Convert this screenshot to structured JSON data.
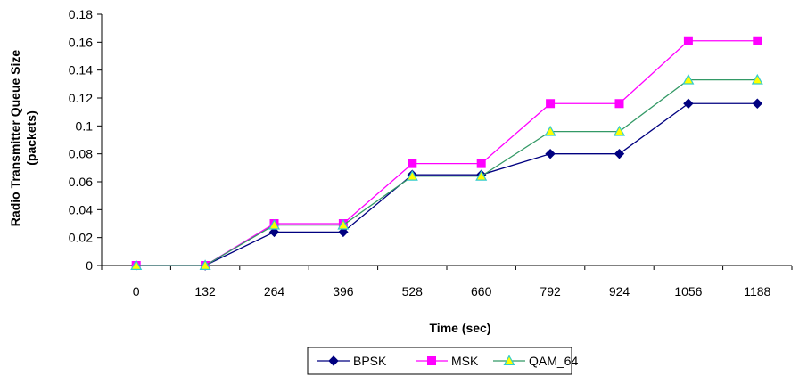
{
  "chart_data": {
    "type": "line",
    "title": "",
    "xlabel": "Time (sec)",
    "ylabel_line1": "Radio Transmitter Queue Size",
    "ylabel_line2": "(packets)",
    "categories": [
      "0",
      "132",
      "264",
      "396",
      "528",
      "660",
      "792",
      "924",
      "1056",
      "1188"
    ],
    "ylim": [
      0,
      0.18
    ],
    "yticks": [
      "0",
      "0.02",
      "0.04",
      "0.06",
      "0.08",
      "0.1",
      "0.12",
      "0.14",
      "0.16",
      "0.18"
    ],
    "grid": false,
    "legend_position": "bottom",
    "series": [
      {
        "name": "BPSK",
        "color": "#000080",
        "marker": "diamond",
        "values": [
          0,
          0,
          0.024,
          0.024,
          0.065,
          0.065,
          0.08,
          0.08,
          0.116,
          0.116
        ]
      },
      {
        "name": "MSK",
        "color": "#FF00FF",
        "marker": "square",
        "values": [
          0,
          0,
          0.03,
          0.03,
          0.073,
          0.073,
          0.116,
          0.116,
          0.161,
          0.161
        ]
      },
      {
        "name": "QAM_64",
        "color": "#339966",
        "marker_fill": "#FFFF00",
        "marker_stroke": "#33CCCC",
        "marker": "triangle",
        "values": [
          0,
          0,
          0.029,
          0.029,
          0.064,
          0.064,
          0.096,
          0.096,
          0.133,
          0.133
        ]
      }
    ]
  }
}
